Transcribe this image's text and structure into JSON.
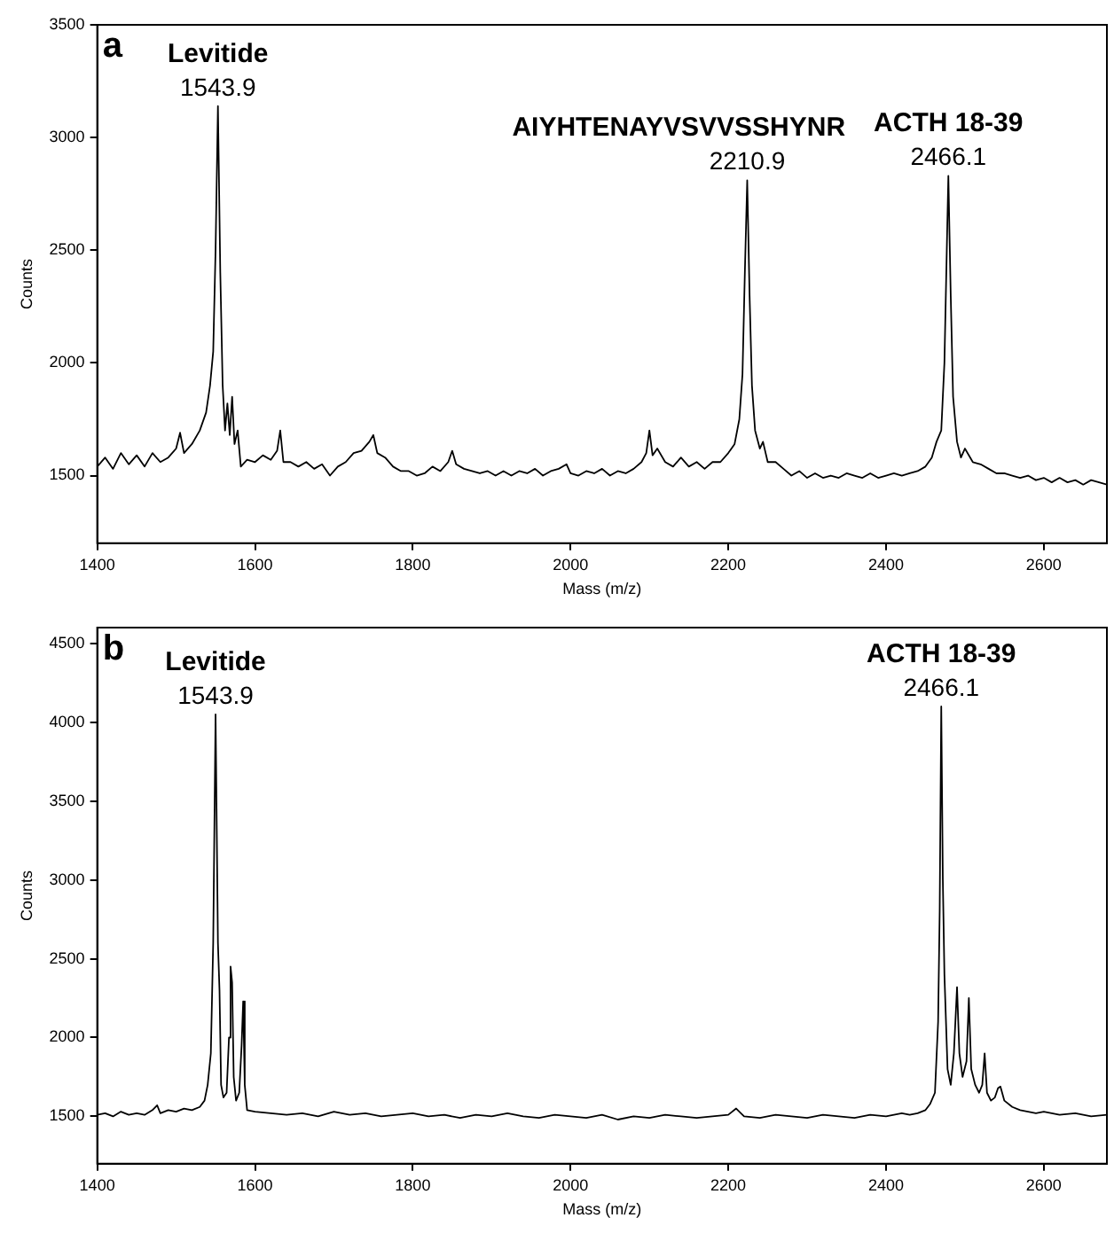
{
  "chart_data": [
    {
      "type": "line",
      "xlabel": "Mass (m/z)",
      "ylabel": "Counts",
      "xlim": [
        1400,
        2680
      ],
      "ylim": [
        1200,
        3500
      ],
      "xticks": [
        1400,
        1600,
        1800,
        2000,
        2200,
        2400,
        2600
      ],
      "yticks": [
        1500,
        2000,
        2500,
        3000,
        3500
      ],
      "legend": false,
      "marker": "none",
      "annotations": [
        "a",
        {
          "text": "Levitide",
          "x": 1553,
          "y": 3140
        },
        {
          "text": "1543.9",
          "x": 1553,
          "y": 3140
        },
        {
          "text": "AIYHTENAYVSVVSSHYNR",
          "x": 2224,
          "y": 2810
        },
        {
          "text": "2210.9",
          "x": 2224,
          "y": 2810
        },
        {
          "text": "ACTH 18-39",
          "x": 2479,
          "y": 2830
        },
        {
          "text": "2466.1",
          "x": 2479,
          "y": 2830
        }
      ],
      "series": [
        {
          "color": "#000000",
          "x": [
            1400,
            1410,
            1420,
            1430,
            1440,
            1450,
            1460,
            1470,
            1480,
            1490,
            1500,
            1505,
            1510,
            1520,
            1530,
            1538,
            1543,
            1547,
            1550,
            1553,
            1556,
            1559,
            1562,
            1565,
            1568,
            1571,
            1574,
            1578,
            1582,
            1590,
            1600,
            1610,
            1620,
            1628,
            1632,
            1636,
            1645,
            1655,
            1665,
            1675,
            1685,
            1695,
            1705,
            1715,
            1725,
            1735,
            1745,
            1750,
            1755,
            1765,
            1775,
            1785,
            1795,
            1805,
            1815,
            1825,
            1835,
            1845,
            1850,
            1855,
            1865,
            1875,
            1885,
            1895,
            1905,
            1915,
            1925,
            1935,
            1945,
            1955,
            1965,
            1975,
            1985,
            1995,
            2000,
            2010,
            2020,
            2030,
            2040,
            2050,
            2060,
            2070,
            2080,
            2090,
            2096,
            2100,
            2104,
            2110,
            2120,
            2130,
            2140,
            2150,
            2160,
            2170,
            2180,
            2190,
            2200,
            2208,
            2214,
            2218,
            2221,
            2224,
            2227,
            2230,
            2234,
            2240,
            2244,
            2250,
            2260,
            2270,
            2280,
            2290,
            2300,
            2310,
            2320,
            2330,
            2340,
            2350,
            2360,
            2370,
            2380,
            2390,
            2400,
            2410,
            2420,
            2430,
            2440,
            2450,
            2458,
            2464,
            2470,
            2474,
            2477,
            2479,
            2482,
            2485,
            2490,
            2495,
            2500,
            2510,
            2520,
            2530,
            2540,
            2550,
            2560,
            2570,
            2580,
            2590,
            2600,
            2610,
            2620,
            2630,
            2640,
            2650,
            2660,
            2670,
            2680
          ],
          "values": [
            1540,
            1580,
            1530,
            1600,
            1550,
            1590,
            1540,
            1600,
            1560,
            1580,
            1620,
            1690,
            1600,
            1640,
            1700,
            1780,
            1900,
            2050,
            2500,
            3140,
            2400,
            1900,
            1700,
            1820,
            1680,
            1850,
            1640,
            1700,
            1540,
            1570,
            1560,
            1590,
            1570,
            1610,
            1700,
            1560,
            1560,
            1540,
            1560,
            1530,
            1550,
            1500,
            1540,
            1560,
            1600,
            1610,
            1650,
            1680,
            1600,
            1580,
            1540,
            1520,
            1520,
            1500,
            1510,
            1540,
            1520,
            1560,
            1610,
            1550,
            1530,
            1520,
            1510,
            1520,
            1500,
            1520,
            1500,
            1520,
            1510,
            1530,
            1500,
            1520,
            1530,
            1550,
            1510,
            1500,
            1520,
            1510,
            1530,
            1500,
            1520,
            1510,
            1530,
            1560,
            1600,
            1700,
            1590,
            1620,
            1560,
            1540,
            1580,
            1540,
            1560,
            1530,
            1560,
            1560,
            1600,
            1640,
            1750,
            1950,
            2400,
            2810,
            2300,
            1900,
            1700,
            1620,
            1650,
            1560,
            1560,
            1530,
            1500,
            1520,
            1490,
            1510,
            1490,
            1500,
            1490,
            1510,
            1500,
            1490,
            1510,
            1490,
            1500,
            1510,
            1500,
            1510,
            1520,
            1540,
            1580,
            1650,
            1700,
            2000,
            2500,
            2830,
            2300,
            1850,
            1650,
            1580,
            1620,
            1560,
            1550,
            1530,
            1510,
            1510,
            1500,
            1490,
            1500,
            1480,
            1490,
            1470,
            1490,
            1470,
            1480,
            1460,
            1480,
            1470,
            1460
          ]
        }
      ]
    },
    {
      "type": "line",
      "xlabel": "Mass (m/z)",
      "ylabel": "Counts",
      "xlim": [
        1400,
        2680
      ],
      "ylim": [
        1200,
        4600
      ],
      "xticks": [
        1400,
        1600,
        1800,
        2000,
        2200,
        2400,
        2600
      ],
      "yticks": [
        1500,
        2000,
        2500,
        3000,
        3500,
        4000,
        4500
      ],
      "legend": false,
      "marker": "none",
      "annotations": [
        "b",
        {
          "text": "Levitide",
          "x": 1550,
          "y": 4050
        },
        {
          "text": "1543.9",
          "x": 1550,
          "y": 4050
        },
        {
          "text": "ACTH 18-39",
          "x": 2470,
          "y": 4100
        },
        {
          "text": "2466.1",
          "x": 2470,
          "y": 4100
        }
      ],
      "series": [
        {
          "color": "#000000",
          "x": [
            1400,
            1410,
            1420,
            1430,
            1440,
            1450,
            1460,
            1470,
            1476,
            1480,
            1490,
            1500,
            1510,
            1520,
            1530,
            1536,
            1540,
            1544,
            1547,
            1550,
            1553,
            1555,
            1557,
            1560,
            1564,
            1567,
            1569,
            1571,
            1573,
            1576,
            1580,
            1583,
            1585,
            1587,
            1590,
            1600,
            1620,
            1640,
            1660,
            1680,
            1700,
            1720,
            1740,
            1760,
            1780,
            1800,
            1820,
            1840,
            1860,
            1880,
            1900,
            1920,
            1940,
            1960,
            1980,
            2000,
            2020,
            2040,
            2060,
            2080,
            2100,
            2120,
            2140,
            2160,
            2180,
            2200,
            2210,
            2220,
            2240,
            2260,
            2280,
            2300,
            2320,
            2340,
            2360,
            2380,
            2400,
            2420,
            2430,
            2440,
            2450,
            2456,
            2462,
            2466,
            2468,
            2470,
            2472,
            2474,
            2478,
            2482,
            2486,
            2490,
            2493,
            2497,
            2502,
            2505,
            2508,
            2513,
            2518,
            2522,
            2525,
            2528,
            2533,
            2538,
            2542,
            2545,
            2550,
            2560,
            2570,
            2580,
            2590,
            2600,
            2620,
            2640,
            2660,
            2680
          ],
          "values": [
            1510,
            1520,
            1500,
            1530,
            1510,
            1520,
            1510,
            1540,
            1570,
            1520,
            1540,
            1530,
            1550,
            1540,
            1560,
            1600,
            1700,
            1900,
            2600,
            4050,
            2600,
            2300,
            1700,
            1620,
            1650,
            2000,
            2450,
            2350,
            1750,
            1600,
            1650,
            1950,
            2230,
            1700,
            1540,
            1530,
            1520,
            1510,
            1520,
            1500,
            1530,
            1510,
            1520,
            1500,
            1510,
            1520,
            1500,
            1510,
            1490,
            1510,
            1500,
            1520,
            1500,
            1490,
            1510,
            1500,
            1490,
            1510,
            1480,
            1500,
            1490,
            1510,
            1500,
            1490,
            1500,
            1510,
            1550,
            1500,
            1490,
            1510,
            1500,
            1490,
            1510,
            1500,
            1490,
            1510,
            1500,
            1520,
            1510,
            1520,
            1540,
            1580,
            1650,
            2100,
            2800,
            4100,
            3000,
            2400,
            1800,
            1700,
            1900,
            2320,
            1900,
            1750,
            1850,
            2250,
            1800,
            1700,
            1650,
            1700,
            1900,
            1650,
            1600,
            1620,
            1680,
            1690,
            1600,
            1560,
            1540,
            1530,
            1520,
            1530,
            1510,
            1520,
            1500,
            1510
          ]
        }
      ]
    }
  ]
}
